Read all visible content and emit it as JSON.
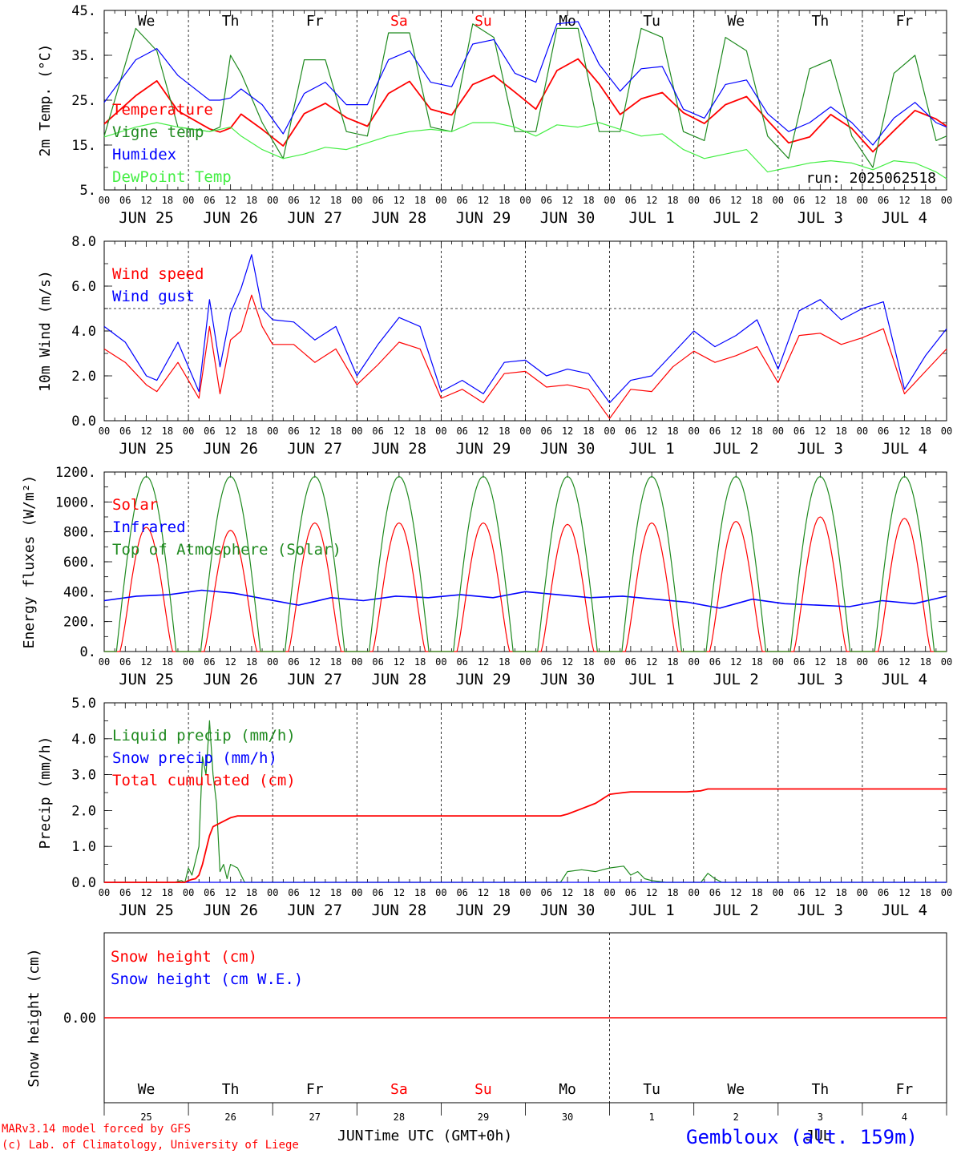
{
  "colors": {
    "red": "#ff0000",
    "green": "#1f8a1f",
    "blue": "#0000ff",
    "light_green": "#44ee44",
    "axis": "#000000",
    "weekend": "#ff0000"
  },
  "footer": {
    "model_line": "MARv3.14 model forced by GFS",
    "credit_line": "(c) Lab. of Climatology, University of Liege",
    "xlabel_prefix": "JUN",
    "xlabel": "Time UTC (GMT+0h)",
    "xlabel_suffix": "JUL",
    "station": "Gembloux (alt. 159m)"
  },
  "days": {
    "weekday": [
      "We",
      "Th",
      "Fr",
      "Sa",
      "Su",
      "Mo",
      "Tu",
      "We",
      "Th",
      "Fr"
    ],
    "weekend": [
      false,
      false,
      false,
      true,
      true,
      false,
      false,
      false,
      false,
      false
    ],
    "date_label": [
      "JUN 25",
      "JUN 26",
      "JUN 27",
      "JUN 28",
      "JUN 29",
      "JUN 30",
      "JUL  1",
      "JUL  2",
      "JUL  3",
      "JUL  4"
    ],
    "day_number": [
      "25",
      "26",
      "27",
      "28",
      "29",
      "30",
      "1",
      "2",
      "3",
      "4"
    ],
    "hour_ticks": [
      "00",
      "06",
      "12",
      "18"
    ],
    "final_tick": "00"
  },
  "chart_data": [
    {
      "type": "line",
      "id": "temperature",
      "ylabel": "2m Temp. (°C)",
      "ylim": [
        5,
        45
      ],
      "yticks": [
        "5.",
        "15.",
        "25.",
        "35.",
        "45."
      ],
      "ytick_values": [
        5,
        15,
        25,
        35,
        45
      ],
      "annotation": "run: 2025062518",
      "x_hours": [
        0,
        9,
        15,
        21,
        30,
        33,
        36,
        39,
        45,
        51,
        57,
        63,
        69,
        75,
        81,
        87,
        93,
        99,
        105,
        111,
        117,
        123,
        129,
        135,
        141,
        147,
        153,
        159,
        165,
        171,
        177,
        183,
        189,
        195,
        201,
        207,
        213,
        219,
        225,
        231,
        237,
        240
      ],
      "series": [
        {
          "name": "Temperature",
          "color": "red",
          "values": [
            19.7,
            26,
            29.3,
            22.6,
            18.6,
            17.9,
            18.8,
            21.9,
            18.5,
            14.8,
            22,
            24.3,
            21.1,
            19.2,
            26.5,
            29.2,
            23,
            21.7,
            28.5,
            30.5,
            26.8,
            23,
            31.6,
            34.2,
            28.6,
            21.8,
            25.3,
            26.7,
            22.2,
            19.8,
            24,
            25.8,
            20.5,
            15.5,
            16.8,
            21.8,
            18.7,
            13.5,
            18.2,
            22.7,
            20.8,
            19.2
          ]
        },
        {
          "name": "Vigne temp",
          "color": "green",
          "values": [
            17,
            41,
            36,
            19,
            18,
            19,
            35,
            31,
            20,
            12,
            34,
            34,
            18,
            17,
            40,
            40,
            19,
            18,
            42,
            39,
            18,
            18,
            41,
            41,
            18,
            18,
            41,
            39,
            18,
            16,
            39,
            36,
            17,
            12,
            32,
            34,
            17,
            10,
            31,
            35,
            16,
            17
          ]
        },
        {
          "name": "Humidex",
          "color": "blue",
          "values": [
            24.5,
            34,
            36.5,
            30.5,
            25,
            25,
            25.5,
            27.5,
            24,
            17.5,
            26.5,
            29,
            24,
            24,
            34,
            36,
            29,
            28,
            37.5,
            38.5,
            31,
            29,
            42,
            42.5,
            33,
            27,
            32,
            32.5,
            23,
            21,
            28.5,
            29.5,
            22,
            18,
            20,
            23.5,
            20,
            15,
            21,
            24.5,
            20,
            19
          ]
        },
        {
          "name": "DewPoint Temp",
          "color": "light_green",
          "values": [
            16.8,
            19,
            20,
            19,
            18,
            18.5,
            19,
            17,
            14,
            12,
            13,
            14.5,
            14,
            15.5,
            17,
            18,
            18.5,
            18,
            20,
            20,
            19,
            17,
            19.5,
            19,
            20,
            18.5,
            17,
            17.5,
            14,
            12,
            13,
            14,
            9,
            10,
            11,
            11.5,
            11,
            9.5,
            11.5,
            11,
            9,
            7.5
          ]
        }
      ]
    },
    {
      "type": "line",
      "id": "wind",
      "ylabel": "10m Wind (m/s)",
      "ylim": [
        0,
        8
      ],
      "yticks": [
        "0.0",
        "2.0",
        "4.0",
        "6.0",
        "8.0"
      ],
      "ytick_values": [
        0,
        2,
        4,
        6,
        8
      ],
      "reference_line": 5.0,
      "x_hours": [
        0,
        6,
        12,
        15,
        21,
        27,
        30,
        33,
        36,
        39,
        42,
        45,
        48,
        54,
        60,
        66,
        72,
        78,
        84,
        90,
        96,
        102,
        108,
        114,
        120,
        126,
        132,
        138,
        144,
        150,
        156,
        162,
        168,
        174,
        180,
        186,
        192,
        198,
        204,
        210,
        216,
        222,
        228,
        234,
        240
      ],
      "series": [
        {
          "name": "Wind speed",
          "color": "red",
          "values": [
            3.2,
            2.6,
            1.6,
            1.3,
            2.6,
            1.0,
            4.2,
            1.2,
            3.6,
            4.0,
            5.6,
            4.2,
            3.4,
            3.4,
            2.6,
            3.2,
            1.6,
            2.5,
            3.5,
            3.2,
            1.0,
            1.4,
            0.8,
            2.1,
            2.2,
            1.5,
            1.6,
            1.4,
            0.1,
            1.4,
            1.3,
            2.4,
            3.1,
            2.6,
            2.9,
            3.3,
            1.7,
            3.8,
            3.9,
            3.4,
            3.7,
            4.1,
            1.2,
            2.2,
            3.2
          ]
        },
        {
          "name": "Wind gust",
          "color": "blue",
          "values": [
            4.2,
            3.5,
            2.0,
            1.8,
            3.5,
            1.3,
            5.4,
            2.4,
            4.8,
            5.9,
            7.4,
            5.0,
            4.5,
            4.4,
            3.6,
            4.2,
            2.0,
            3.4,
            4.6,
            4.2,
            1.3,
            1.8,
            1.2,
            2.6,
            2.7,
            2.0,
            2.3,
            2.1,
            0.8,
            1.8,
            2.0,
            3.0,
            4.0,
            3.3,
            3.8,
            4.5,
            2.3,
            4.9,
            5.4,
            4.5,
            5.0,
            5.3,
            1.4,
            2.9,
            4.1
          ]
        }
      ]
    },
    {
      "type": "line",
      "id": "energy",
      "ylabel": "Energy fluxes (W/m²)",
      "ylim": [
        0,
        1200
      ],
      "yticks": [
        "0.",
        "200.",
        "400.",
        "600.",
        "800.",
        "1000.",
        "1200."
      ],
      "ytick_values": [
        0,
        200,
        400,
        600,
        800,
        1000,
        1200
      ],
      "series": [
        {
          "name": "Solar",
          "color": "red",
          "peak_per_day": [
            830,
            810,
            860,
            860,
            860,
            850,
            860,
            870,
            900,
            890
          ]
        },
        {
          "name": "Infrared",
          "color": "blue",
          "values": [
            340,
            370,
            380,
            410,
            390,
            350,
            310,
            360,
            340,
            370,
            360,
            380,
            360,
            400,
            380,
            360,
            370,
            350,
            330,
            290,
            350,
            320,
            310,
            300,
            340,
            320,
            370
          ]
        },
        {
          "name": "Top of Atmosphere (Solar)",
          "color": "green",
          "peak_per_day": [
            1170,
            1170,
            1170,
            1170,
            1170,
            1170,
            1170,
            1170,
            1170,
            1170
          ]
        }
      ]
    },
    {
      "type": "line",
      "id": "precip",
      "ylabel": "Precip (mm/h)",
      "ylim": [
        0,
        5
      ],
      "yticks": [
        "0.0",
        "1.0",
        "2.0",
        "3.0",
        "4.0",
        "5.0"
      ],
      "ytick_values": [
        0,
        1,
        2,
        3,
        4,
        5
      ],
      "x_hours": [
        0,
        20,
        22,
        23,
        24,
        25,
        26,
        27,
        28,
        29,
        30,
        31,
        32,
        33,
        34,
        35,
        36,
        38,
        40,
        42,
        44,
        48,
        130,
        132,
        136,
        140,
        144,
        148,
        150,
        152,
        154,
        156,
        160,
        166,
        170,
        172,
        174,
        176,
        240
      ],
      "series": [
        {
          "name": "Liquid precip (mm/h)",
          "color": "green",
          "values": [
            0,
            0,
            0.05,
            0,
            0.4,
            0.2,
            0.6,
            1.0,
            3.5,
            3.0,
            4.5,
            3.0,
            2.2,
            0.3,
            0.5,
            0.1,
            0.5,
            0.4,
            0,
            0,
            0,
            0,
            0,
            0.3,
            0.35,
            0.3,
            0.4,
            0.45,
            0.2,
            0.3,
            0.1,
            0.05,
            0,
            0,
            0,
            0.25,
            0.1,
            0,
            0
          ]
        },
        {
          "name": "Snow precip (mm/h)",
          "color": "blue",
          "values": [
            0,
            0,
            0,
            0,
            0,
            0,
            0,
            0,
            0,
            0,
            0,
            0,
            0,
            0,
            0,
            0,
            0,
            0,
            0,
            0,
            0,
            0,
            0,
            0,
            0,
            0,
            0,
            0,
            0,
            0,
            0,
            0,
            0,
            0,
            0,
            0,
            0,
            0,
            0
          ]
        },
        {
          "name": "Total cumulated (cm)",
          "color": "red",
          "values": [
            0,
            0,
            0,
            0,
            0.05,
            0.08,
            0.1,
            0.2,
            0.5,
            0.9,
            1.3,
            1.55,
            1.6,
            1.65,
            1.7,
            1.75,
            1.8,
            1.85,
            1.85,
            1.85,
            1.85,
            1.85,
            1.85,
            1.9,
            2.05,
            2.2,
            2.45,
            2.5,
            2.52,
            2.52,
            2.52,
            2.52,
            2.52,
            2.52,
            2.55,
            2.6,
            2.6,
            2.6,
            2.6
          ]
        }
      ]
    },
    {
      "type": "line",
      "id": "snow",
      "ylabel": "Snow height (cm)",
      "yticks": [
        "0.00"
      ],
      "ytick_values": [
        0
      ],
      "series": [
        {
          "name": "Snow height (cm)",
          "color": "red",
          "values": [
            0,
            0
          ]
        },
        {
          "name": "Snow height (cm W.E.)",
          "color": "blue",
          "values": [
            0,
            0
          ]
        }
      ]
    }
  ]
}
